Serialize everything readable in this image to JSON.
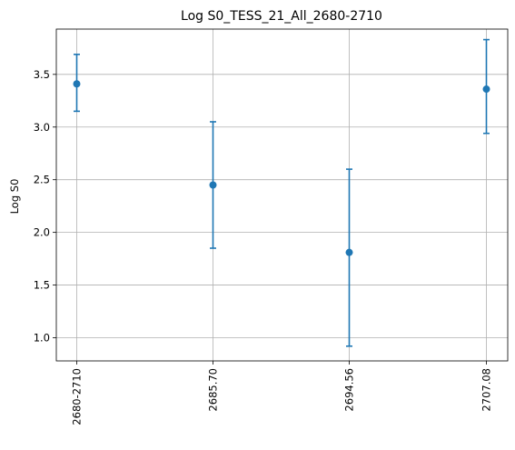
{
  "chart_data": {
    "type": "scatter",
    "title": "Log S0_TESS_21_All_2680-2710",
    "xlabel": "",
    "ylabel": "Log S0",
    "categories": [
      "2680-2710",
      "2685.70",
      "2694.56",
      "2707.08"
    ],
    "series": [
      {
        "values": [
          3.41,
          2.45,
          1.81,
          3.36
        ],
        "err_low": [
          3.15,
          1.85,
          0.92,
          2.94
        ],
        "err_high": [
          3.69,
          3.05,
          2.6,
          3.83
        ]
      }
    ],
    "yticks": [
      "1.0",
      "1.5",
      "2.0",
      "2.5",
      "3.0",
      "3.5"
    ],
    "ylim": [
      0.78,
      3.93
    ],
    "grid": true,
    "color": "#1f77b4"
  }
}
